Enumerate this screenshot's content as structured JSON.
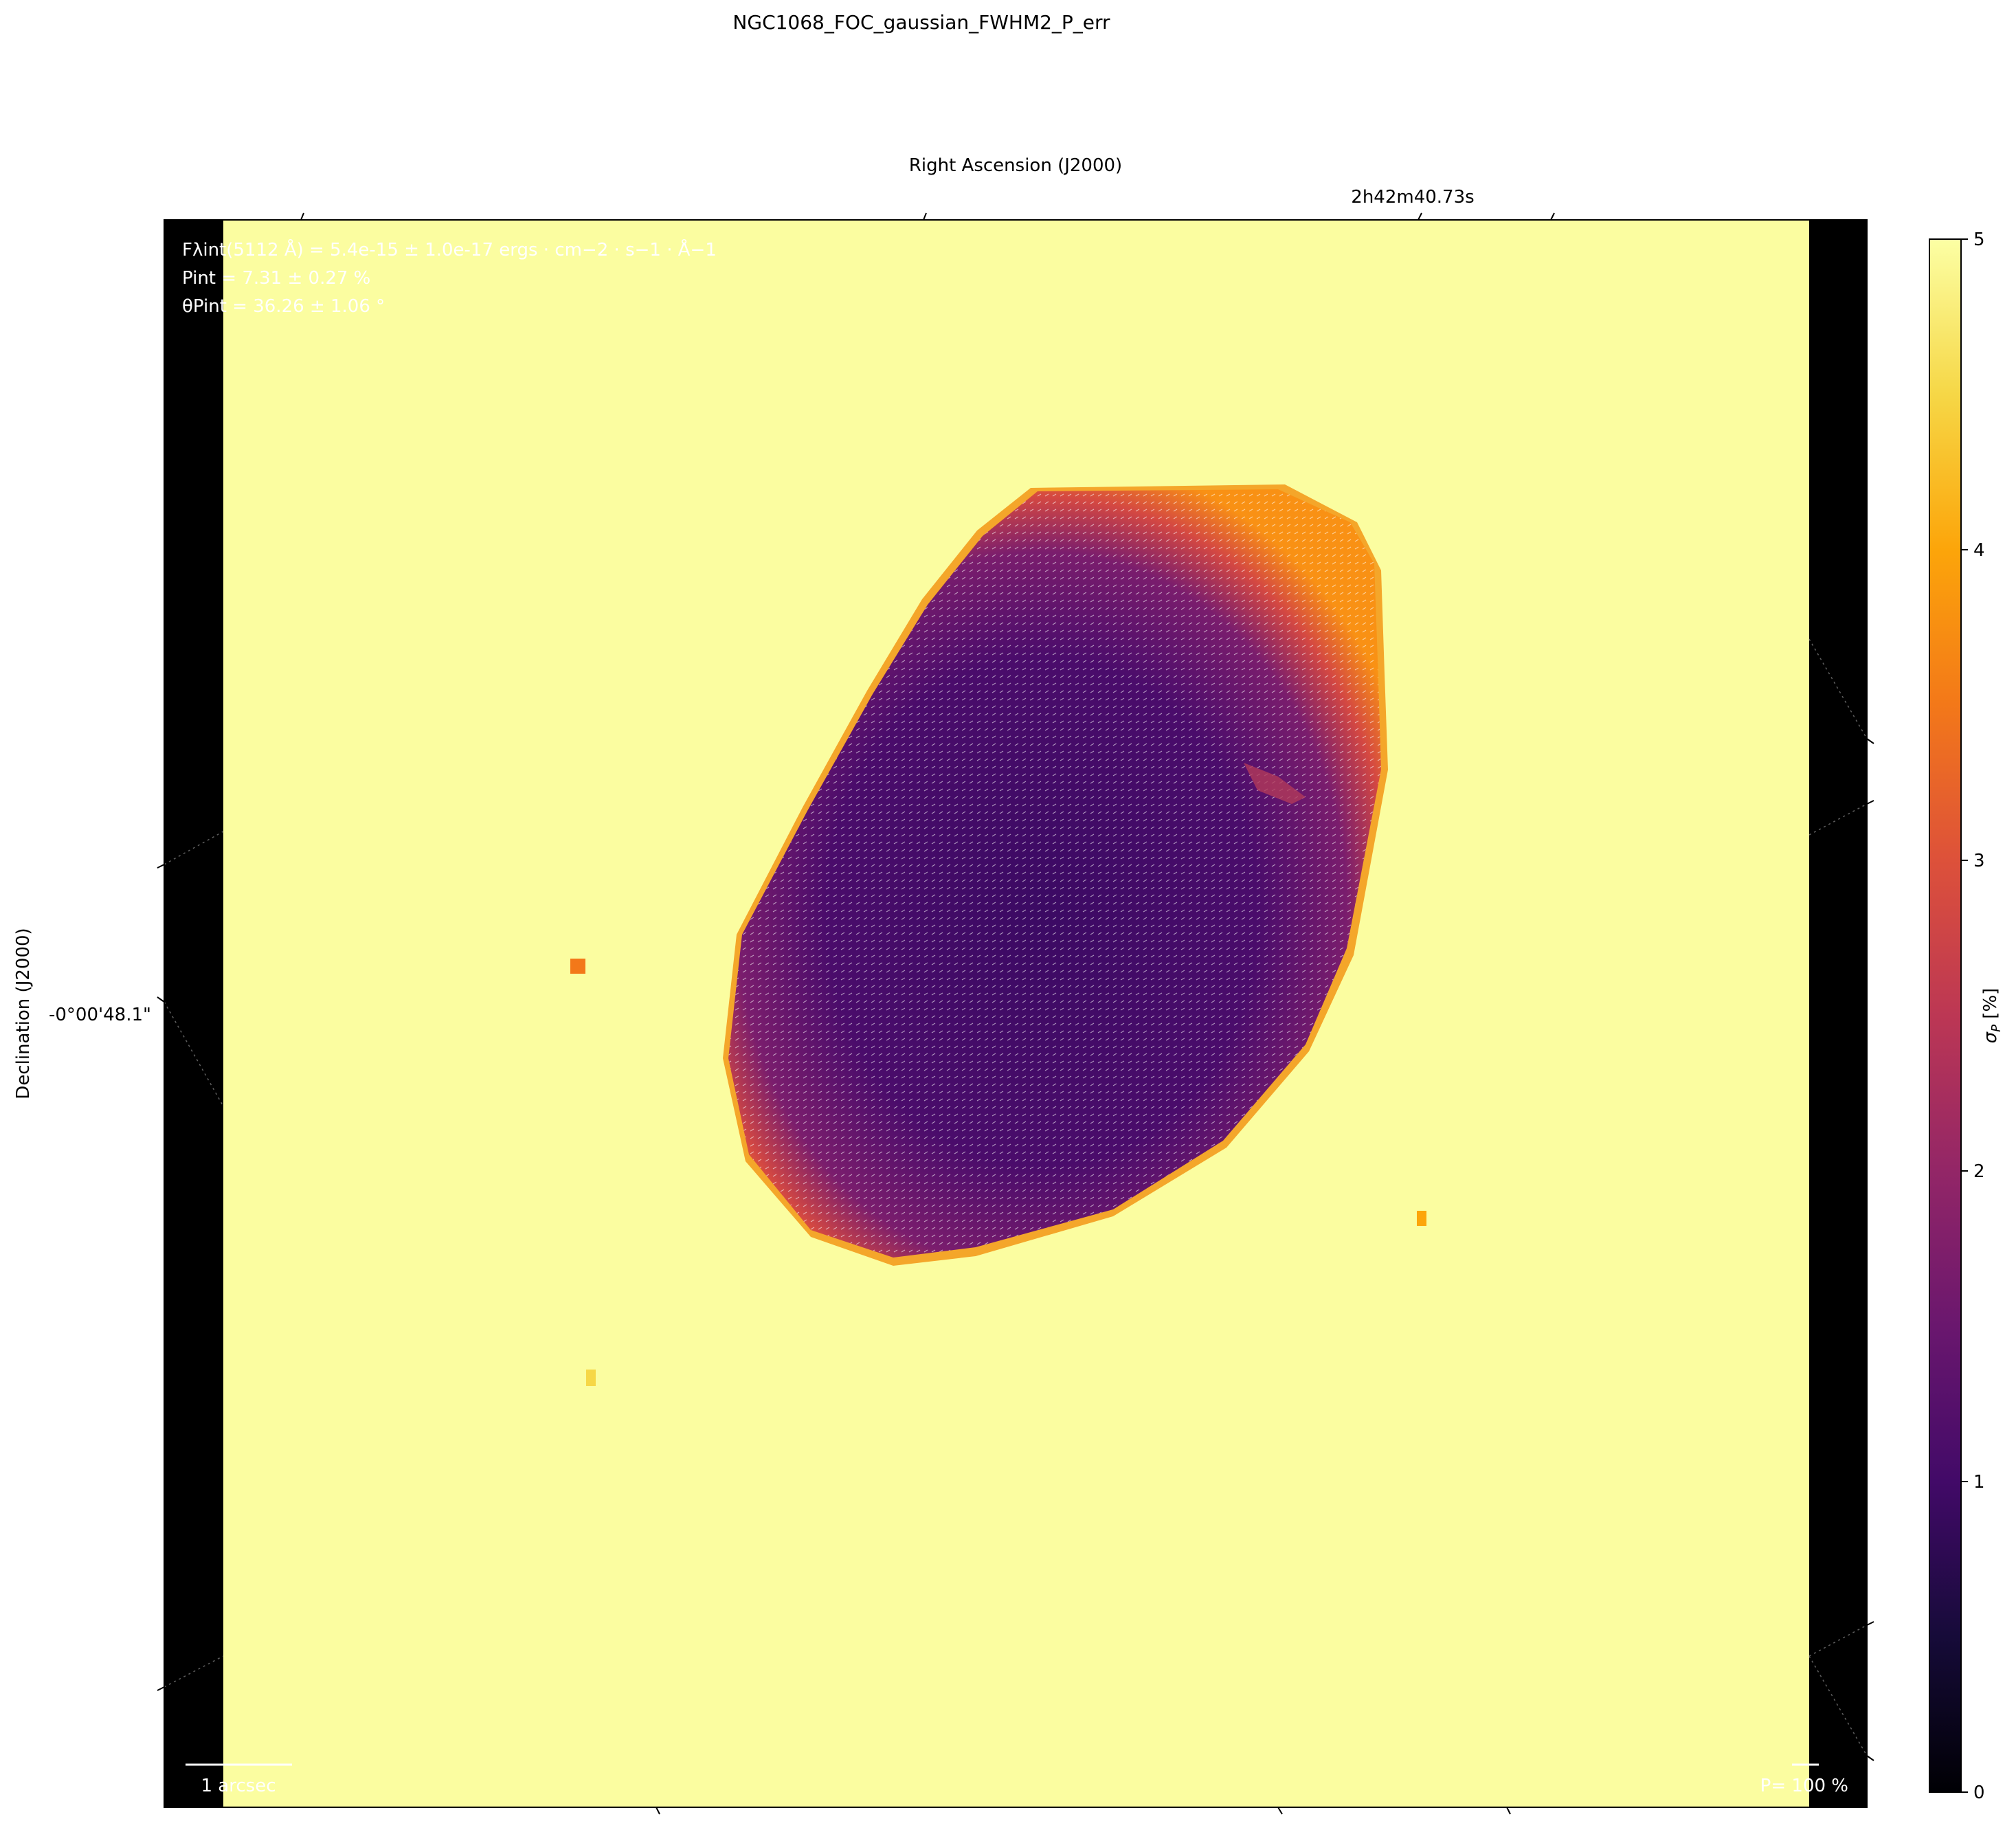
{
  "chart_data": {
    "type": "heatmap",
    "title": "NGC1068_FOC_gaussian_FWHM2_P_err",
    "xlabel": "Right Ascension (J2000)",
    "ylabel": "Declination (J2000)",
    "x_tick_labels": [
      "2h42m40.73s"
    ],
    "y_tick_labels": [
      "-0°00'48.1\""
    ],
    "colorbar": {
      "label": "σP [%]",
      "range": [
        0,
        5
      ],
      "ticks": [
        "0",
        "1",
        "2",
        "3",
        "4",
        "5"
      ],
      "colormap": "inferno"
    },
    "annotations": [
      "Fλint(5112 Å) = 5.4e-15 ± 1.0e-17 ergs · cm−2 · s−1 · Å−1",
      "Pint = 7.31 ± 0.27 %",
      "θPint = 36.26 ± 1.06 °"
    ],
    "scale_bar_label": "1 arcsec",
    "vector_scale_label": "P= 100 %",
    "background_value": 5,
    "hot_pixels": [
      {
        "value": 4.0
      },
      {
        "value": 4.2
      },
      {
        "value": 4.7
      }
    ],
    "grid": true
  }
}
